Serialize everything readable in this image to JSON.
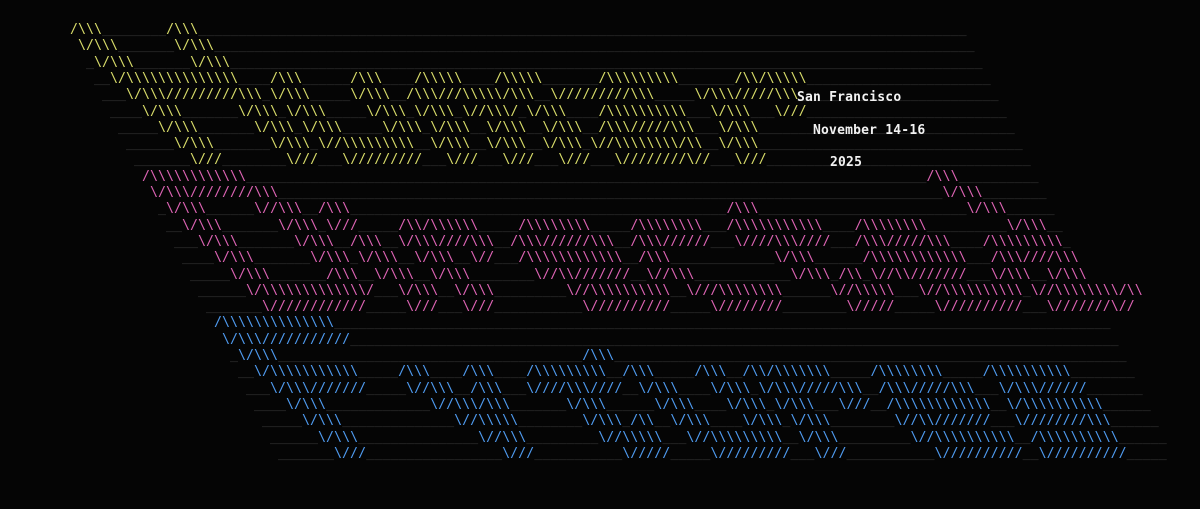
{
  "event": {
    "city": "San Francisco",
    "dates": "November 14-16",
    "year": "2025"
  },
  "colors": {
    "background": "#050505",
    "underscore": "#3a3a3a",
    "word_1": "#d8dc6a",
    "word_2": "#dd64b4",
    "word_3": "#4f9bf0",
    "text": "#f2f2f2"
  },
  "ascii_art": {
    "word_1_rows": [
      "/\\\\\\        /\\\\\\",
      "\\/\\\\\\       \\/\\\\\\",
      " \\/\\\\\\       \\/\\\\\\",
      "  \\/\\\\\\\\\\\\\\\\\\\\\\\\\\\\    /\\\\\\      /\\\\\\    /\\\\\\\\\\    /\\\\\\\\\\       /\\\\\\\\\\\\\\\\\\       /\\\\/\\\\\\\\\\",
      "   \\/\\\\\\/////////\\\\\\ \\/\\\\\\     \\/\\\\\\  /\\\\\\///\\\\\\\\\\/\\\\\\  \\/////////\\\\\\     \\/\\\\\\/////\\\\\\",
      "    \\/\\\\\\       \\/\\\\\\ \\/\\\\\\     \\/\\\\\\ \\/\\\\\\ \\//\\\\\\/ \\/\\\\\\    /\\\\\\\\\\\\\\\\\\\\   \\/\\\\\\   \\///",
      "     \\/\\\\\\       \\/\\\\\\ \\/\\\\\\     \\/\\\\\\ \\/\\\\\\  \\/\\\\\\  \\/\\\\\\  /\\\\\\/////\\\\\\   \\/\\\\\\",
      "      \\/\\\\\\       \\/\\\\\\ \\//\\\\\\\\\\\\\\\\\\  \\/\\\\\\  \\/\\\\\\  \\/\\\\\\ \\//\\\\\\\\\\\\\\\\/\\\\  \\/\\\\\\",
      "       \\///        \\///   \\/////////   \\///   \\///   \\///   \\////////\\//   \\///"
    ],
    "word_2_rows": [
      "/\\\\\\\\\\\\\\\\\\\\\\\\                                                                                     /\\\\\\",
      "\\/\\\\\\////////\\\\\\                                                                                   \\/\\\\\\",
      " \\/\\\\\\      \\//\\\\\\  /\\\\\\                                               /\\\\\\                          \\/\\\\\\",
      "  \\/\\\\\\       \\/\\\\\\ \\///     /\\\\/\\\\\\\\\\\\     /\\\\\\\\\\\\\\\\     /\\\\\\\\\\\\\\\\   /\\\\\\\\\\\\\\\\\\\\\\    /\\\\\\\\\\\\\\\\          \\/\\\\\\",
      "   \\/\\\\\\       \\/\\\\\\  /\\\\\\  \\/\\\\\\////\\\\\\  /\\\\\\//////\\\\\\  /\\\\\\//////   \\////\\\\\\////   /\\\\\\/////\\\\\\    /\\\\\\\\\\\\\\\\\\",
      "    \\/\\\\\\       \\/\\\\\\ \\/\\\\\\  \\/\\\\\\  \\//   /\\\\\\\\\\\\\\\\\\\\\\\\  /\\\\\\             \\/\\\\\\      /\\\\\\\\\\\\\\\\\\\\\\\\   /\\\\\\////\\\\\\",
      "     \\/\\\\\\       /\\\\\\  \\/\\\\\\  \\/\\\\\\        \\//\\\\///////  \\//\\\\\\            \\/\\\\\\ /\\\\ \\//\\\\///////   \\/\\\\\\  \\/\\\\\\",
      "      \\/\\\\\\\\\\\\\\\\\\\\\\\\\\/   \\/\\\\\\  \\/\\\\\\         \\//\\\\\\\\\\\\\\\\\\\\  \\///\\\\\\\\\\\\\\\\      \\//\\\\\\\\\\   \\//\\\\\\\\\\\\\\\\\\\\ \\//\\\\\\\\\\\\\\\\/\\\\",
      "       \\////////////     \\///   \\///           \\//////////     \\////////        \\/////     \\//////////   \\///////\\//"
    ],
    "word_3_rows": [
      "/\\\\\\\\\\\\\\\\\\\\\\\\\\\\",
      "\\/\\\\\\///////////",
      " \\/\\\\\\                                      /\\\\\\",
      "  \\/\\\\\\\\\\\\\\\\\\\\\\     /\\\\\\    /\\\\\\    /\\\\\\\\\\\\\\\\\\  /\\\\\\     /\\\\\\  /\\\\/\\\\\\\\\\\\\\     /\\\\\\\\\\\\\\\\     /\\\\\\\\\\\\\\\\\\\\",
      "   \\/\\\\\\///////     \\//\\\\\\  /\\\\\\   \\////\\\\\\////  \\/\\\\\\    \\/\\\\\\ \\/\\\\\\/////\\\\\\  /\\\\\\/////\\\\\\   \\/\\\\\\//////",
      "    \\/\\\\\\             \\//\\\\\\/\\\\\\       \\/\\\\\\      \\/\\\\\\    \\/\\\\\\ \\/\\\\\\   \\///  /\\\\\\\\\\\\\\\\\\\\\\\\  \\/\\\\\\\\\\\\\\\\\\\\",
      "     \\/\\\\\\              \\//\\\\\\\\\\        \\/\\\\\\ /\\\\  \\/\\\\\\    \\/\\\\\\ \\/\\\\\\        \\//\\\\///////   \\////////\\\\\\",
      "      \\/\\\\\\               \\//\\\\\\         \\//\\\\\\\\\\   \\//\\\\\\\\\\\\\\\\\\  \\/\\\\\\         \\//\\\\\\\\\\\\\\\\\\\\  /\\\\\\\\\\\\\\\\\\\\",
      "       \\///                 \\///           \\/////     \\/////////   \\///           \\//////////  \\//////////"
    ]
  }
}
